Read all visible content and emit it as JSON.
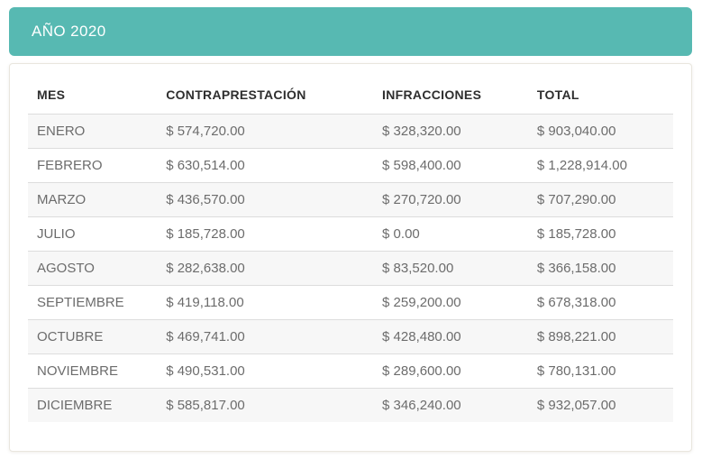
{
  "header": {
    "title": "AÑO 2020"
  },
  "table": {
    "columns": [
      "MES",
      "CONTRAPRESTACIÓN",
      "INFRACCIONES",
      "TOTAL"
    ],
    "rows": [
      {
        "mes": "ENERO",
        "contraprestacion": "$ 574,720.00",
        "infracciones": "$ 328,320.00",
        "total": "$ 903,040.00"
      },
      {
        "mes": "FEBRERO",
        "contraprestacion": "$ 630,514.00",
        "infracciones": "$ 598,400.00",
        "total": "$ 1,228,914.00"
      },
      {
        "mes": "MARZO",
        "contraprestacion": "$ 436,570.00",
        "infracciones": "$ 270,720.00",
        "total": "$ 707,290.00"
      },
      {
        "mes": "JULIO",
        "contraprestacion": "$ 185,728.00",
        "infracciones": "$ 0.00",
        "total": "$ 185,728.00"
      },
      {
        "mes": "AGOSTO",
        "contraprestacion": "$ 282,638.00",
        "infracciones": "$ 83,520.00",
        "total": "$ 366,158.00"
      },
      {
        "mes": "SEPTIEMBRE",
        "contraprestacion": "$ 419,118.00",
        "infracciones": "$ 259,200.00",
        "total": "$ 678,318.00"
      },
      {
        "mes": "OCTUBRE",
        "contraprestacion": "$ 469,741.00",
        "infracciones": "$ 428,480.00",
        "total": "$ 898,221.00"
      },
      {
        "mes": "NOVIEMBRE",
        "contraprestacion": "$ 490,531.00",
        "infracciones": "$ 289,600.00",
        "total": "$ 780,131.00"
      },
      {
        "mes": "DICIEMBRE",
        "contraprestacion": "$ 585,817.00",
        "infracciones": "$ 346,240.00",
        "total": "$ 932,057.00"
      }
    ]
  },
  "colors": {
    "accent_teal": "#57b9b2",
    "row_stripe": "#f7f7f7",
    "row_border": "#dddddd",
    "header_text": "#2e2e2e",
    "cell_text": "#6c6c6c",
    "title_text": "#ffffff"
  }
}
